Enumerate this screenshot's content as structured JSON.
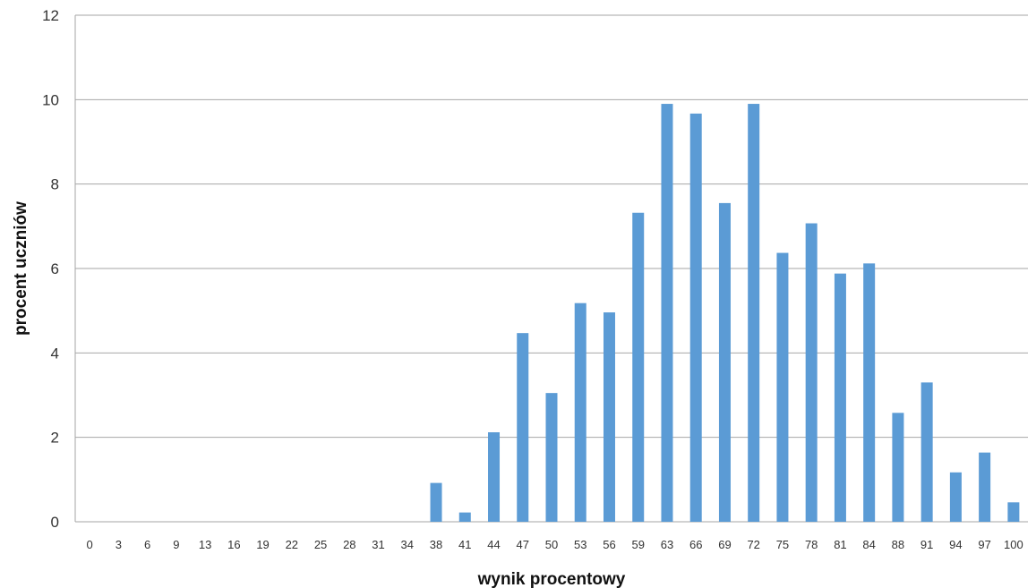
{
  "chart_data": {
    "type": "bar",
    "title": "",
    "xlabel": "wynik procentowy",
    "ylabel": "procent uczniów",
    "ylim": [
      0,
      12
    ],
    "yticks": [
      0,
      2,
      4,
      6,
      8,
      10,
      12
    ],
    "grid": true,
    "legend": "none",
    "bar_color": "#5b9bd5",
    "categories": [
      "0",
      "3",
      "6",
      "9",
      "13",
      "16",
      "19",
      "22",
      "25",
      "28",
      "31",
      "34",
      "38",
      "41",
      "44",
      "47",
      "50",
      "53",
      "56",
      "59",
      "63",
      "66",
      "69",
      "72",
      "75",
      "78",
      "81",
      "84",
      "88",
      "91",
      "94",
      "97",
      "100"
    ],
    "values": [
      0,
      0,
      0,
      0,
      0,
      0,
      0,
      0,
      0,
      0,
      0,
      0,
      0.92,
      0.22,
      2.12,
      4.47,
      3.05,
      5.18,
      4.96,
      7.32,
      9.9,
      9.67,
      7.55,
      9.9,
      6.37,
      7.07,
      5.88,
      6.12,
      2.58,
      3.3,
      1.17,
      1.64,
      0.46
    ]
  }
}
